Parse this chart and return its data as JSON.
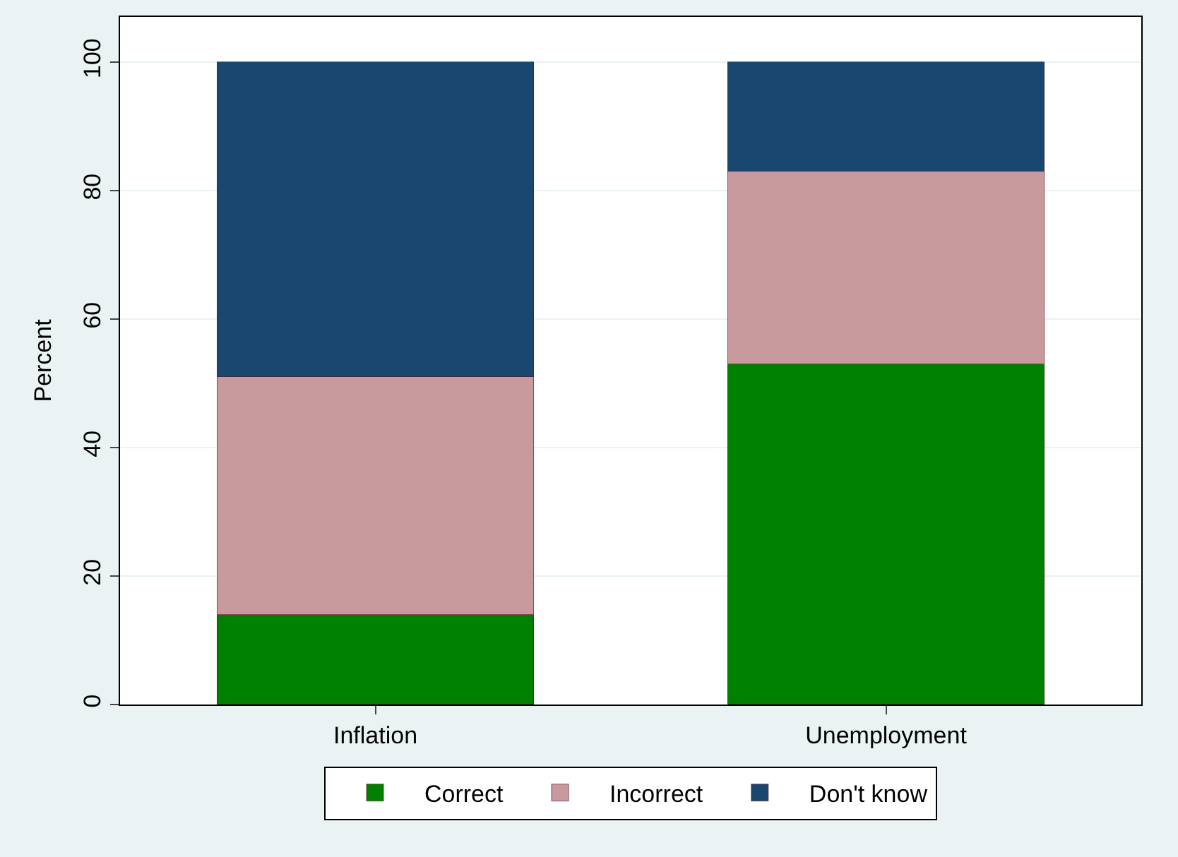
{
  "chart_data": {
    "type": "bar",
    "stacked": true,
    "ylabel": "Percent",
    "categories": [
      "Inflation",
      "Unemployment"
    ],
    "series": [
      {
        "name": "Correct",
        "color": "#008000",
        "values": [
          14,
          53
        ]
      },
      {
        "name": "Incorrect",
        "color": "#c89a9e",
        "values": [
          37,
          30
        ]
      },
      {
        "name": "Don't know",
        "color": "#1a476f",
        "values": [
          49,
          17
        ]
      }
    ],
    "ylim": [
      0,
      107
    ],
    "yticks": [
      0,
      20,
      40,
      60,
      80,
      100
    ],
    "grid": "y",
    "legend": "bottom"
  }
}
